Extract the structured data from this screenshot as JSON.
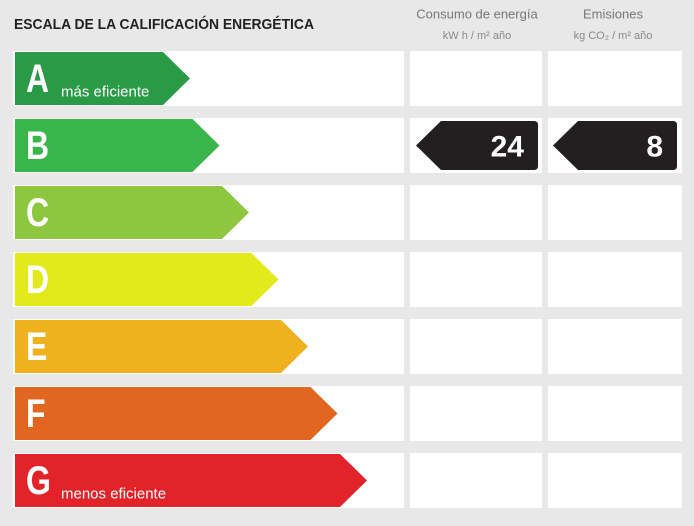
{
  "header": {
    "title": "ESCALA DE LA CALIFICACIÓN ENERGÉTICA",
    "energy": {
      "title": "Consumo de energía",
      "unit": "kW h / m² año"
    },
    "emissions": {
      "title": "Emisiones",
      "unit": "kg CO₂ / m² año"
    }
  },
  "rows": [
    {
      "letter": "A",
      "note": "más eficiente",
      "color": "#2a9a47"
    },
    {
      "letter": "B",
      "color": "#3ab54a",
      "energy": 24,
      "emissions": 8
    },
    {
      "letter": "C",
      "color": "#8dc63f"
    },
    {
      "letter": "D",
      "color": "#e2ea1c"
    },
    {
      "letter": "E",
      "color": "#efb11e"
    },
    {
      "letter": "F",
      "color": "#e1661f"
    },
    {
      "letter": "G",
      "note": "menos eficiente",
      "color": "#e2242a"
    }
  ]
}
